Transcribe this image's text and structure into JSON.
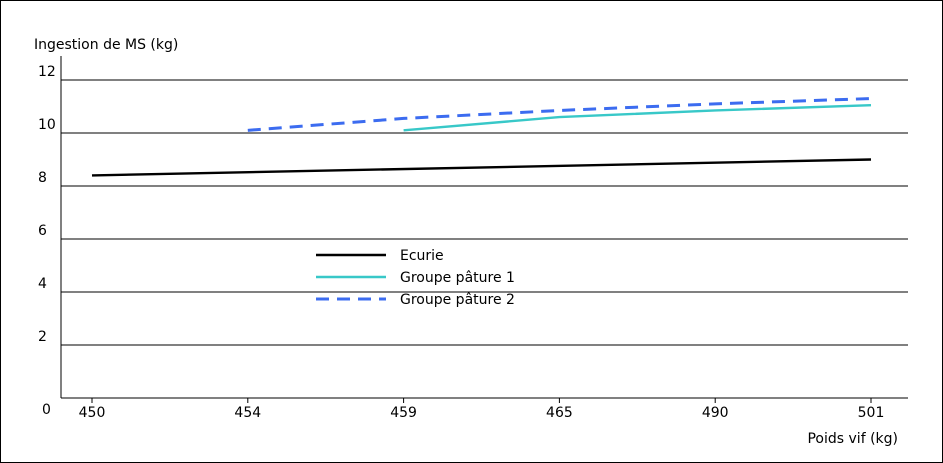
{
  "chart_data": {
    "type": "line",
    "ylabel": "Ingestion de MS (kg)",
    "xlabel": "Poids vif (kg)",
    "categories": [
      "450",
      "454",
      "459",
      "465",
      "490",
      "501"
    ],
    "yticks": [
      "0",
      "2",
      "4",
      "6",
      "8",
      "10",
      "12"
    ],
    "ylim": [
      0,
      12
    ],
    "grid": "horizontal",
    "legend_position": "center",
    "series": [
      {
        "name": "Ecurie",
        "color": "#000000",
        "dash": "solid",
        "x": [
          "450",
          "501"
        ],
        "values": [
          8.4,
          9.0
        ]
      },
      {
        "name": "Groupe pâture 1",
        "color": "#38c8c8",
        "dash": "solid",
        "x": [
          "459",
          "465",
          "490",
          "501"
        ],
        "values": [
          10.1,
          10.6,
          10.85,
          11.05
        ]
      },
      {
        "name": "Groupe pâture 2",
        "color": "#3c6cf0",
        "dash": "dashed",
        "x": [
          "454",
          "459",
          "465",
          "490",
          "501"
        ],
        "values": [
          10.1,
          10.55,
          10.85,
          11.1,
          11.3
        ]
      }
    ]
  }
}
